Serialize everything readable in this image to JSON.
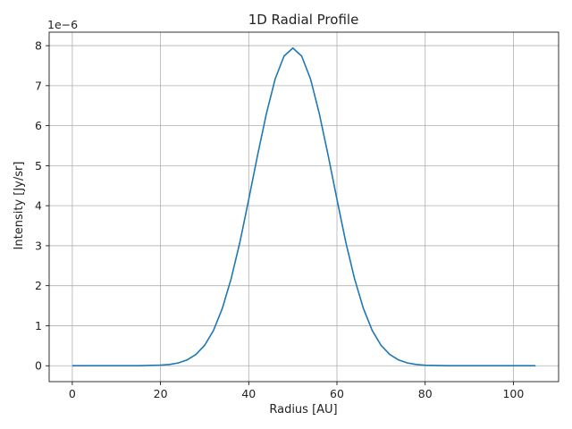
{
  "chart_data": {
    "type": "line",
    "title": "1D Radial Profile",
    "xlabel": "Radius [AU]",
    "ylabel": "Intensity [Jy/sr]",
    "offset_label": "1e−6",
    "xlim": [
      -5.25,
      110.25
    ],
    "ylim": [
      -0.397,
      8.337
    ],
    "x_ticks": [
      0,
      20,
      40,
      60,
      80,
      100
    ],
    "y_ticks": [
      0,
      1,
      2,
      3,
      4,
      5,
      6,
      7,
      8
    ],
    "grid": true,
    "series": [
      {
        "color": "#1f77b4",
        "x": [
          0,
          5,
          10,
          15,
          20,
          22,
          24,
          26,
          28,
          30,
          32,
          34,
          36,
          38,
          40,
          42,
          44,
          46,
          48,
          50,
          52,
          54,
          56,
          58,
          60,
          62,
          64,
          66,
          68,
          70,
          72,
          74,
          76,
          78,
          80,
          85,
          90,
          95,
          100,
          105
        ],
        "y": [
          0,
          0,
          0,
          0.0008,
          0.015,
          0.031,
          0.069,
          0.144,
          0.28,
          0.51,
          0.88,
          1.43,
          2.17,
          3.09,
          4.16,
          5.26,
          6.3,
          7.17,
          7.74,
          7.94,
          7.74,
          7.17,
          6.3,
          5.26,
          4.16,
          3.09,
          2.17,
          1.43,
          0.88,
          0.51,
          0.28,
          0.144,
          0.069,
          0.031,
          0.013,
          0.0013,
          0.0001,
          0,
          0,
          0
        ]
      }
    ]
  }
}
